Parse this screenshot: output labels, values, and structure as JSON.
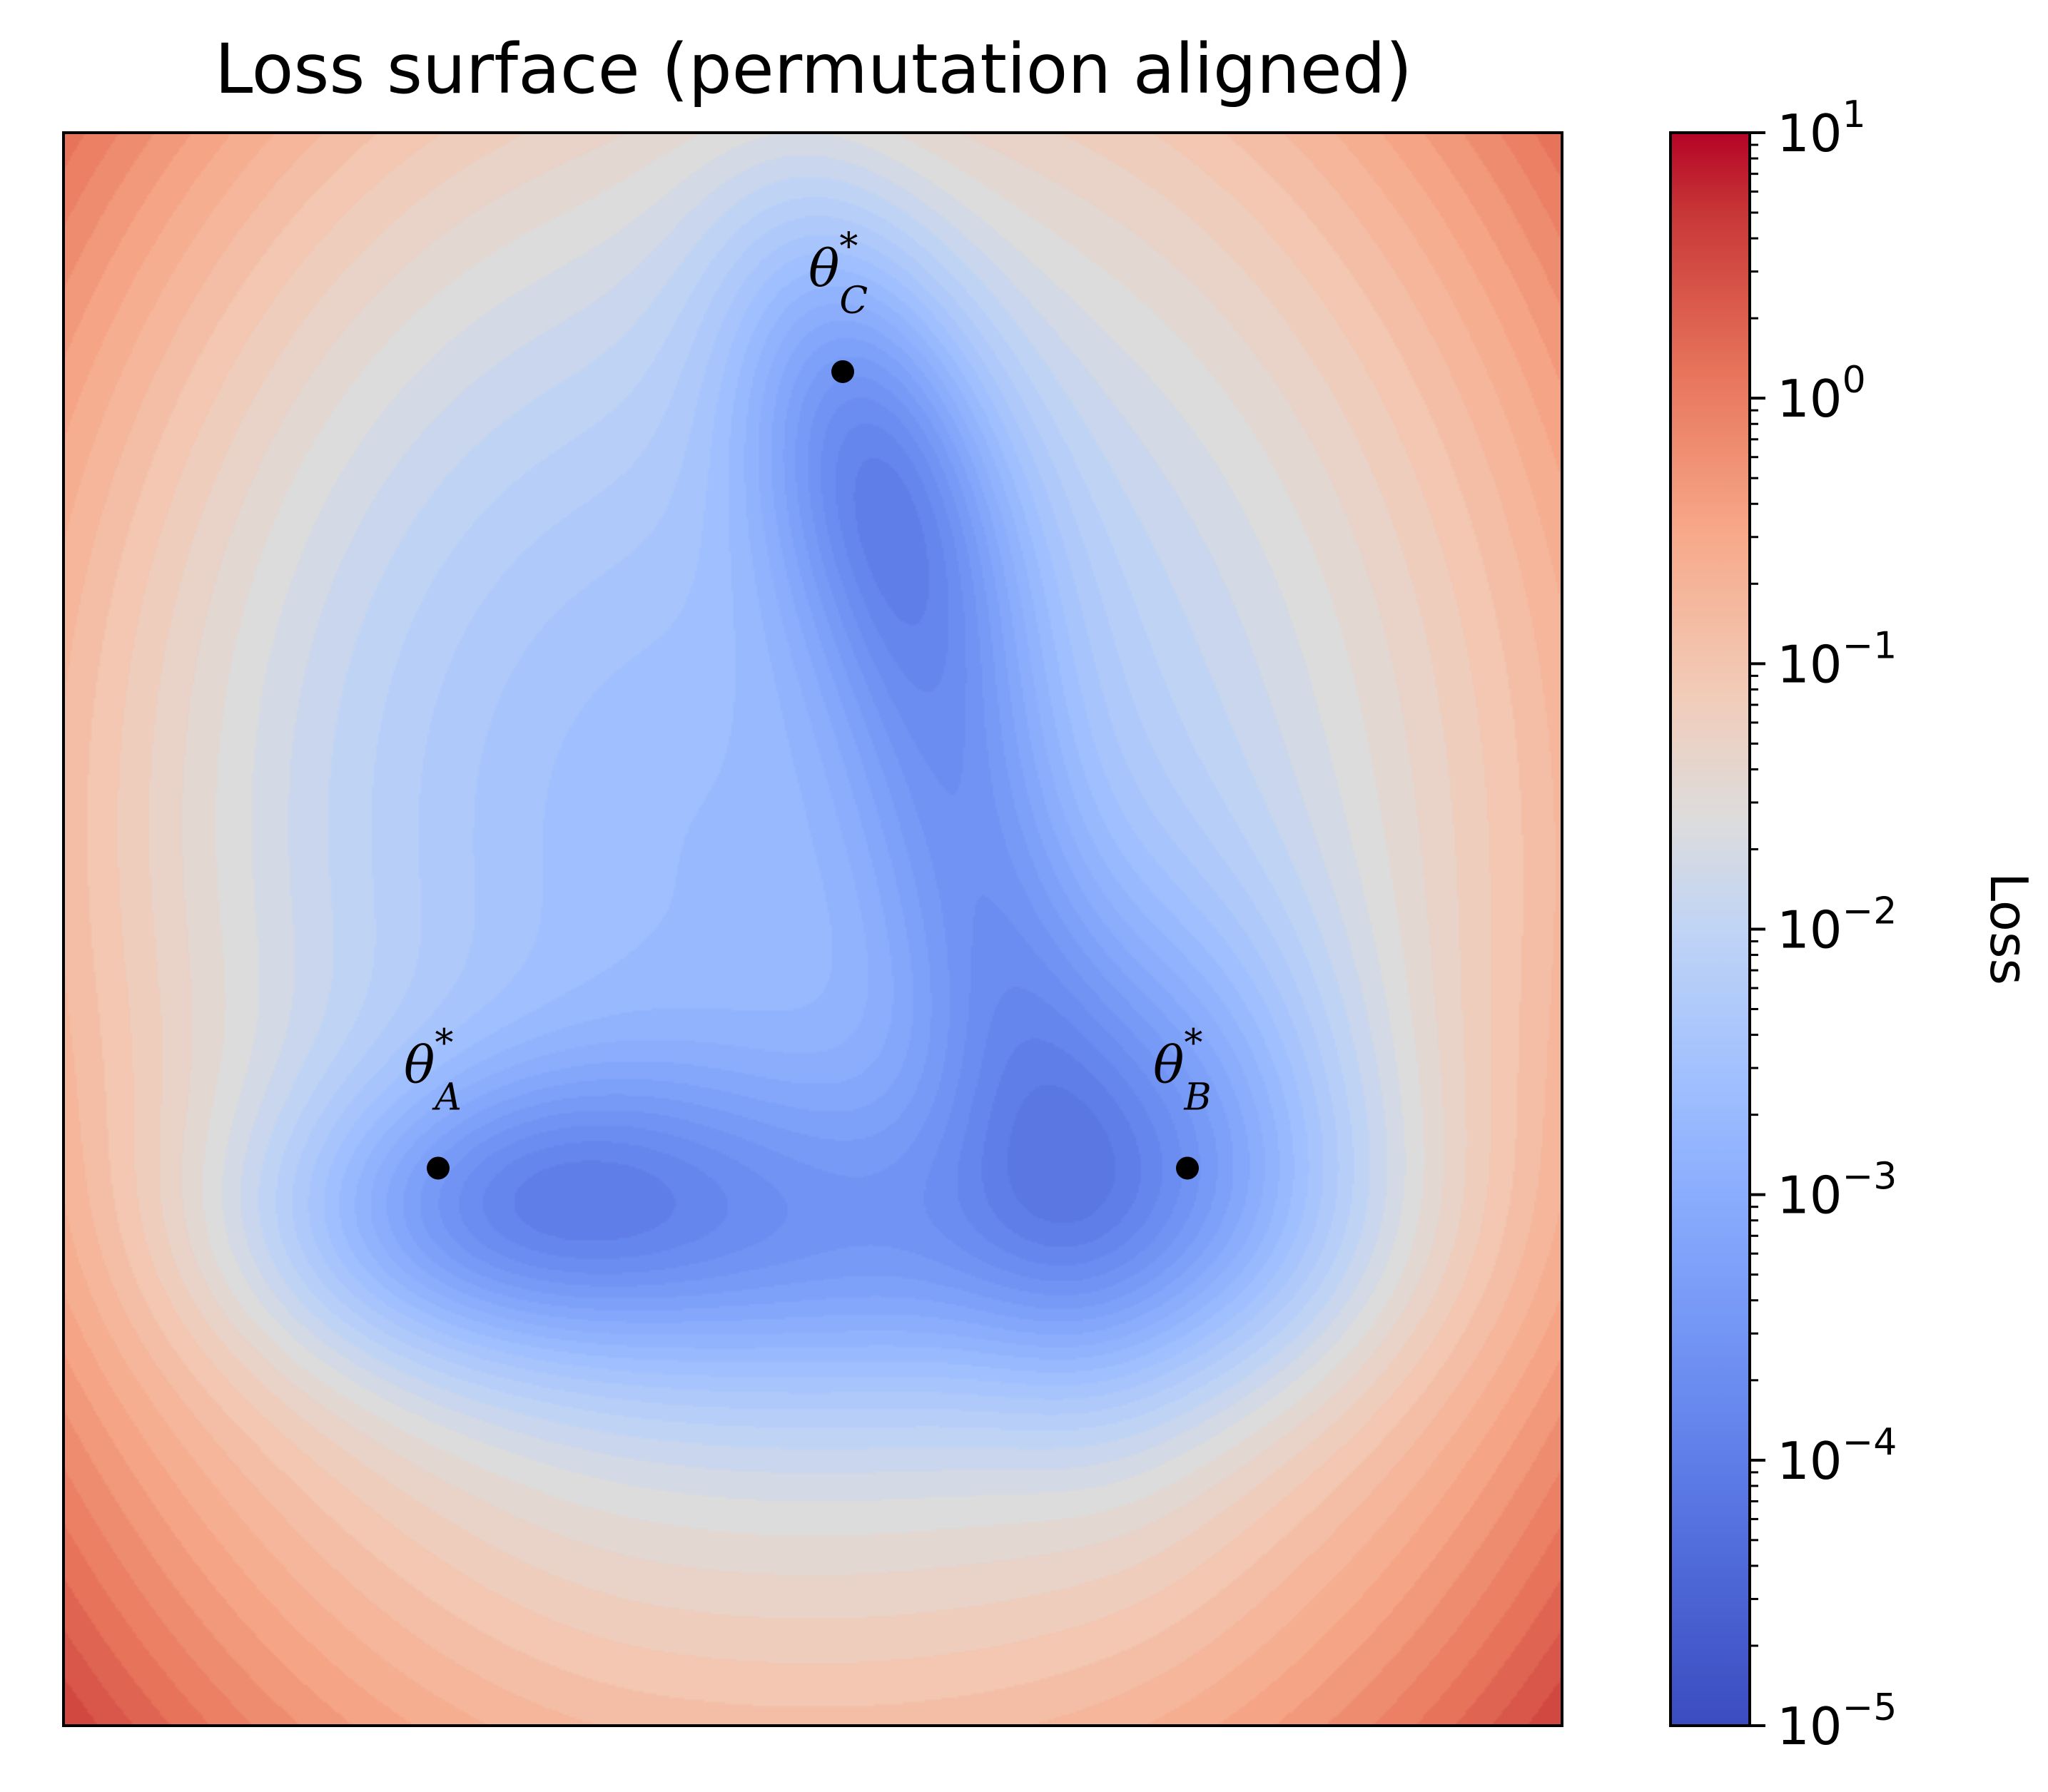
{
  "chart_data": {
    "type": "heatmap",
    "title": "Loss surface (permutation aligned)",
    "xlabel": "",
    "ylabel": "",
    "x_ticks": "none",
    "y_ticks": "none",
    "colormap": "coolwarm",
    "colorbar": {
      "label": "Loss",
      "scale": "log",
      "range": [
        1e-05,
        10
      ],
      "ticks": [
        {
          "value": 10,
          "base": "10",
          "exp": "1"
        },
        {
          "value": 1,
          "base": "10",
          "exp": "0"
        },
        {
          "value": 0.1,
          "base": "10",
          "exp": "−1"
        },
        {
          "value": 0.01,
          "base": "10",
          "exp": "−2"
        },
        {
          "value": 0.001,
          "base": "10",
          "exp": "−3"
        },
        {
          "value": 0.0001,
          "base": "10",
          "exp": "−4"
        },
        {
          "value": 1e-05,
          "base": "10",
          "exp": "−5"
        }
      ],
      "placement": "right"
    },
    "minima": [
      {
        "symbol": "θ",
        "superscript": "*",
        "subscript": "A",
        "x": 0.25,
        "y": 0.35
      },
      {
        "symbol": "θ",
        "superscript": "*",
        "subscript": "B",
        "x": 0.75,
        "y": 0.35
      },
      {
        "symbol": "θ",
        "superscript": "*",
        "subscript": "C",
        "x": 0.52,
        "y": 0.85
      }
    ],
    "surface": {
      "description_of_field": "log10 loss; low basins around the three minima connected by a valley; high loss at the corners",
      "min_log10_loss": -4.2,
      "max_log10_loss": 0.6
    },
    "colors": {
      "cold": "#3b4cc0",
      "neutral": "#dddcdc",
      "hot": "#b40426",
      "marker": "#000000",
      "axis": "#000000"
    }
  }
}
